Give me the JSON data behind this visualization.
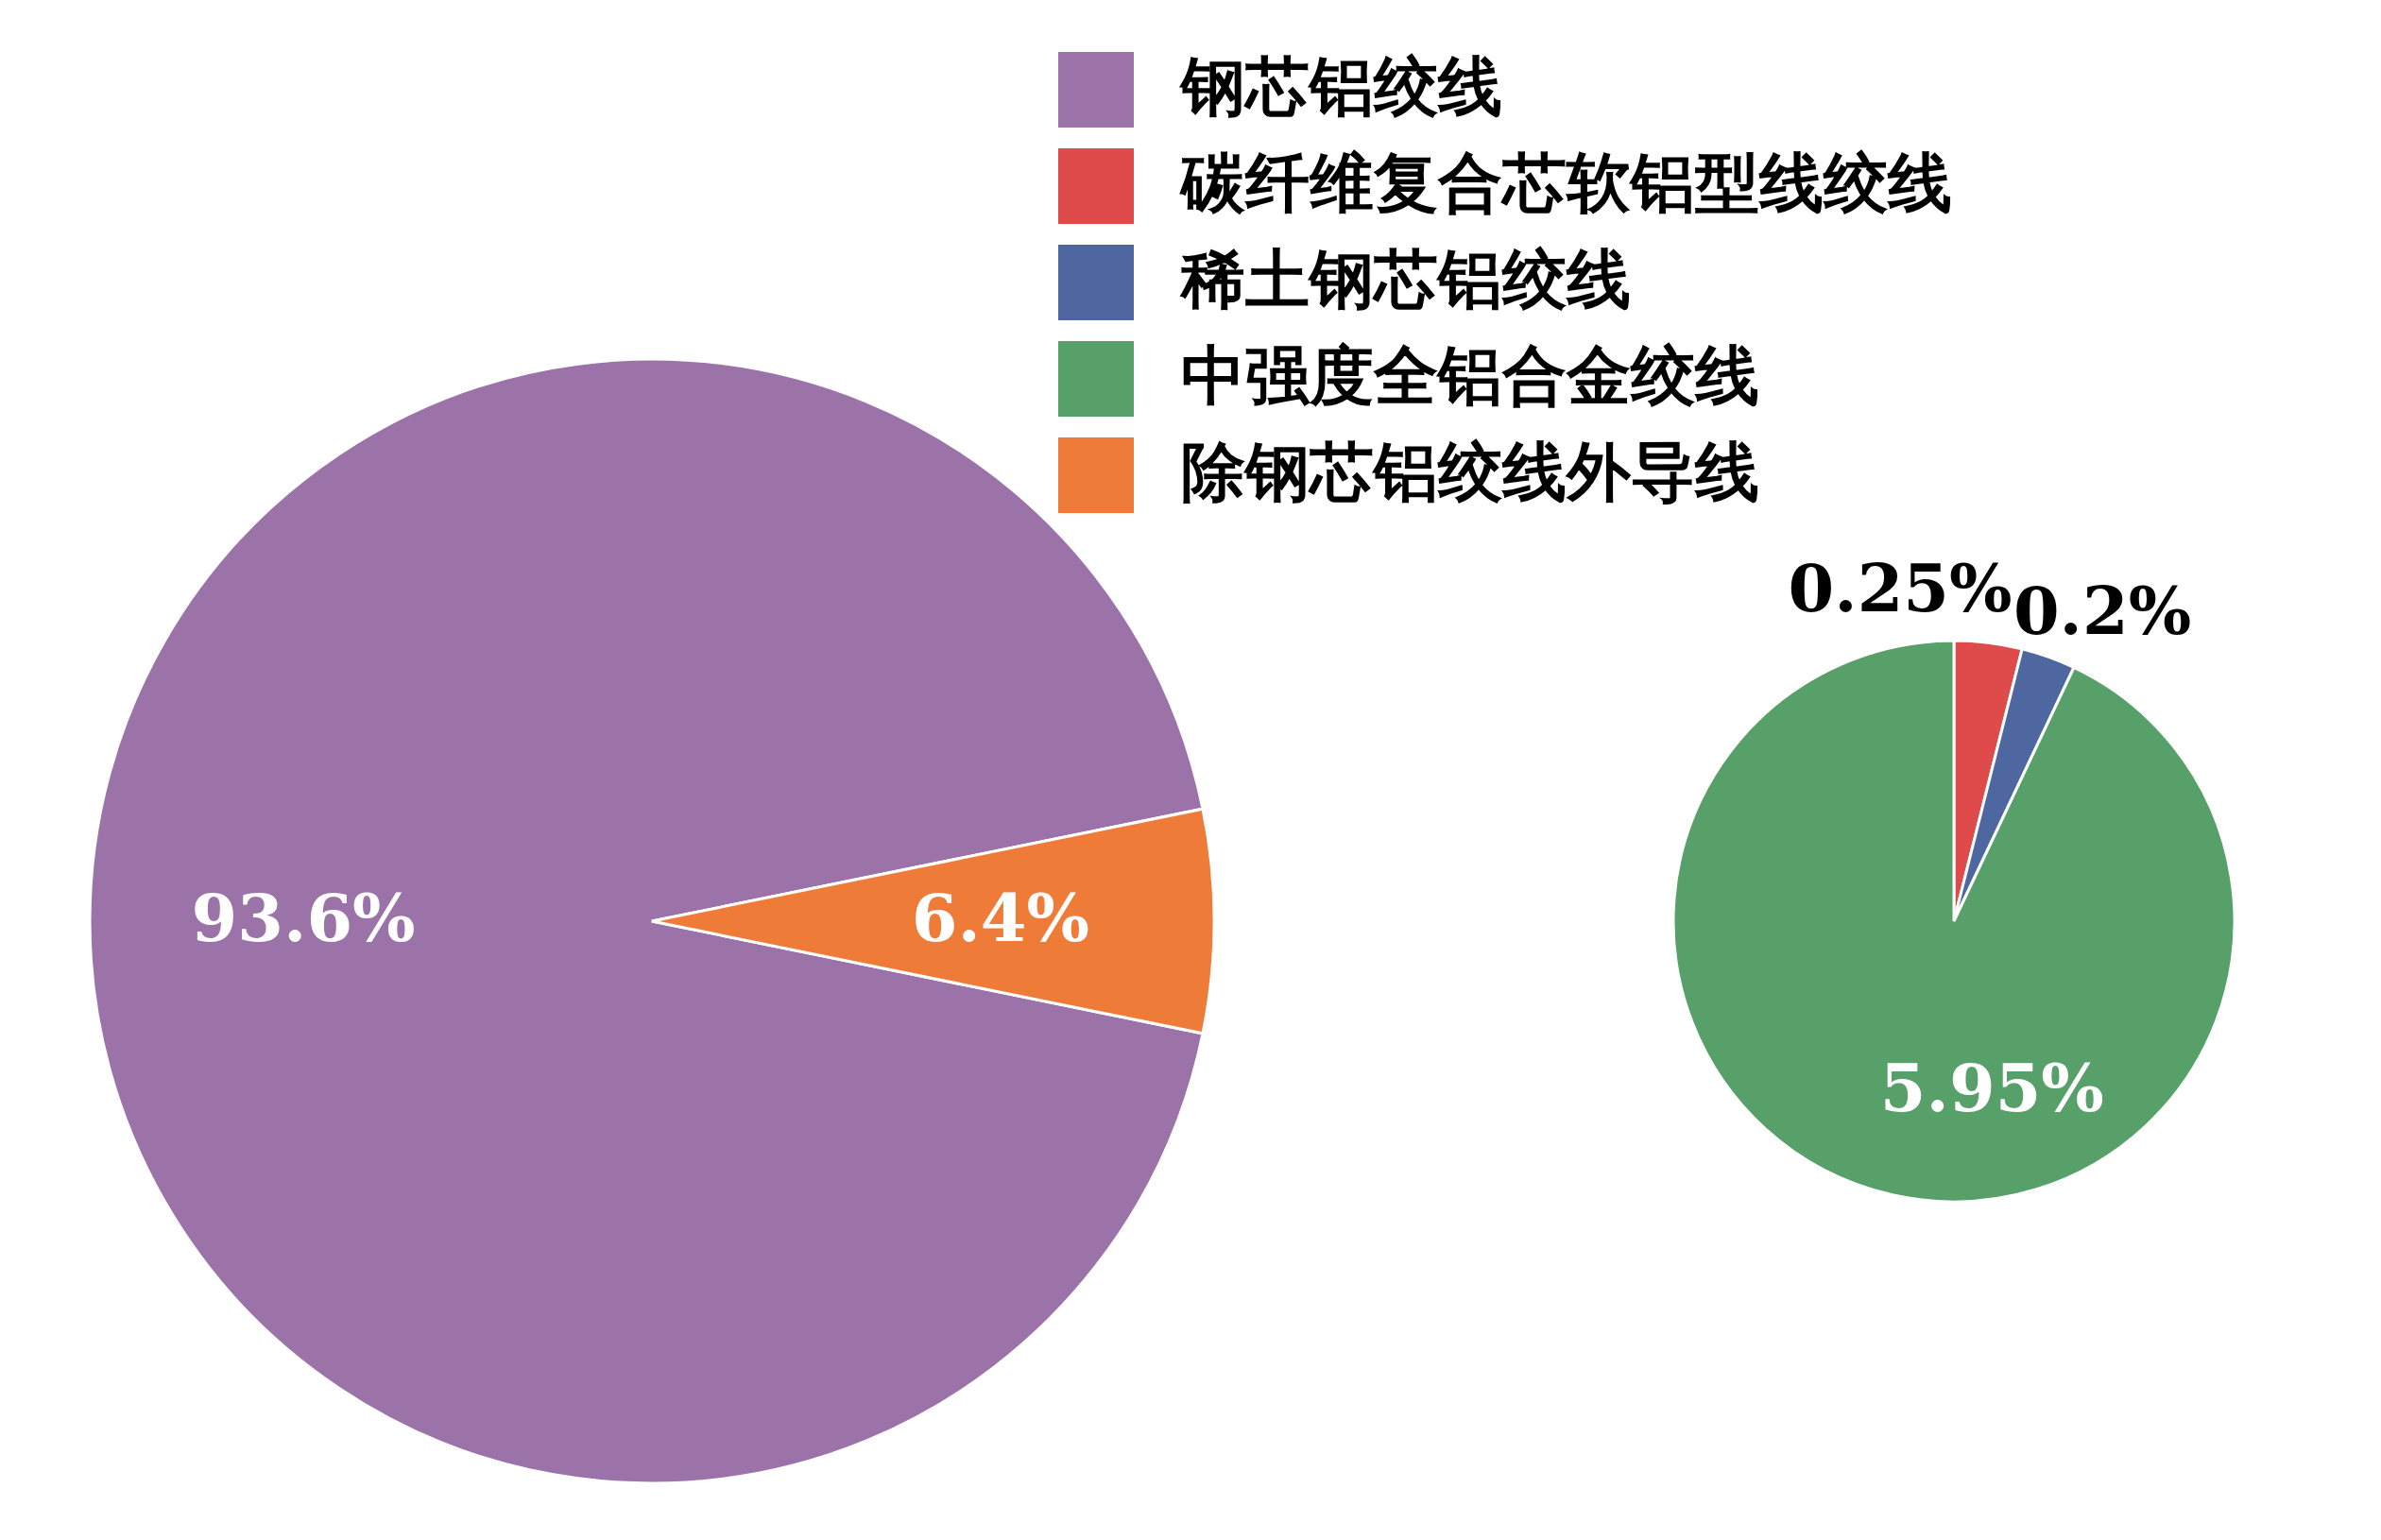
{
  "chart_data": [
    {
      "type": "pie",
      "categories": [
        "钢芯铝绞线",
        "除钢芯铝绞线外导线"
      ],
      "values": [
        93.6,
        6.4
      ],
      "colors": [
        "#9b73a8",
        "#ee7b38"
      ],
      "value_labels": [
        "93.6%",
        "6.4%"
      ],
      "legend": "top right"
    },
    {
      "type": "pie",
      "categories": [
        "碳纤维复合芯软铝型线绞线",
        "稀土钢芯铝绞线",
        "中强度全铝合金绞线"
      ],
      "values": [
        0.25,
        0.2,
        5.95
      ],
      "colors": [
        "#df4b4b",
        "#4e67a0",
        "#58a069"
      ],
      "value_labels": [
        "0.25%",
        "0.2%",
        "5.95%"
      ],
      "legend": "top left"
    }
  ]
}
